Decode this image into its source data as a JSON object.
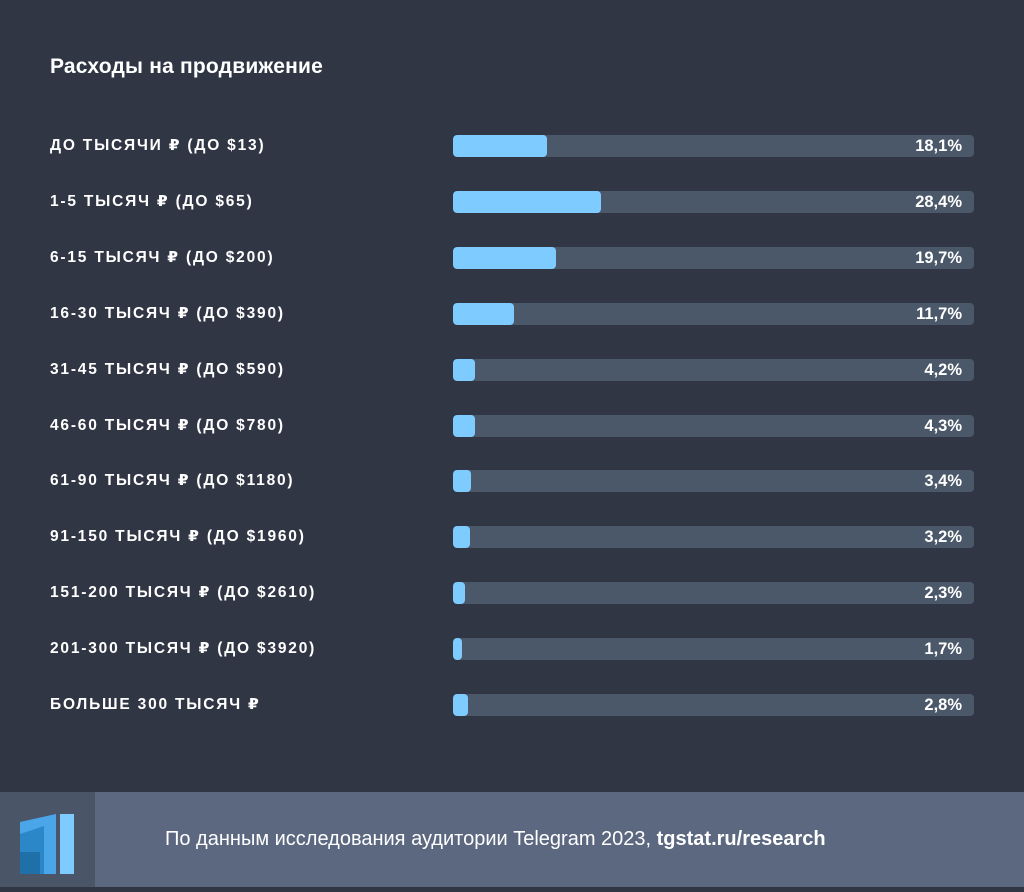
{
  "chart_data": {
    "type": "bar",
    "orientation": "horizontal",
    "title": "Расходы на продвижение",
    "categories": [
      "до тысячи ₽ (до $13)",
      "1-5 тысяч ₽ (до $65)",
      "6-15 тысяч ₽ (до $200)",
      "16-30 тысяч ₽ (до $390)",
      "31-45 тысяч ₽ (до $590)",
      "46-60 тысяч ₽ (до $780)",
      "61-90 тысяч ₽ (до $1180)",
      "91-150 тысяч ₽ (до $1960)",
      "151-200 тысяч ₽ (до $2610)",
      "201-300 тысяч ₽ (до $3920)",
      "больше 300 тысяч ₽"
    ],
    "values": [
      18.1,
      28.4,
      19.7,
      11.7,
      4.2,
      4.3,
      3.4,
      3.2,
      2.3,
      1.7,
      2.8
    ],
    "value_labels": [
      "18,1%",
      "28,4%",
      "19,7%",
      "11,7%",
      "4,2%",
      "4,3%",
      "3,4%",
      "3,2%",
      "2,3%",
      "1,7%",
      "2,8%"
    ],
    "xlim": [
      0,
      100
    ],
    "colors": {
      "bar": "#7ecbff",
      "track": "#4a5869",
      "background": "#313645"
    }
  },
  "footer": {
    "text": "По данным исследования аудитории Telegram 2023, ",
    "link": "tgstat.ru/research",
    "logo_icon": "tgstat-logo-icon"
  }
}
